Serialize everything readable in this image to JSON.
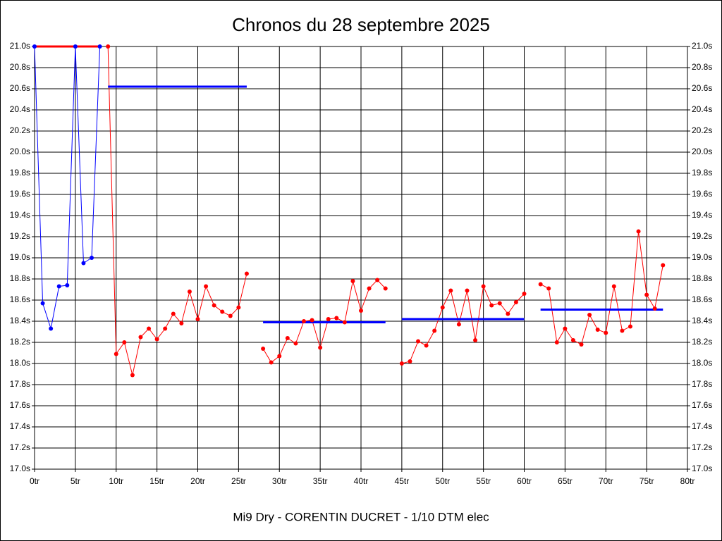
{
  "chart_data": {
    "type": "line",
    "title": "Chronos du 28 septembre 2025",
    "subtitle": "Mi9 Dry - CORENTIN DUCRET - 1/10 DTM elec",
    "grid": true,
    "xlim": [
      0,
      80
    ],
    "ylim": [
      17,
      21
    ],
    "xticks": [
      {
        "value": 0,
        "label": "0tr"
      },
      {
        "value": 5,
        "label": "5tr"
      },
      {
        "value": 10,
        "label": "10tr"
      },
      {
        "value": 15,
        "label": "15tr"
      },
      {
        "value": 20,
        "label": "20tr"
      },
      {
        "value": 25,
        "label": "25tr"
      },
      {
        "value": 30,
        "label": "30tr"
      },
      {
        "value": 35,
        "label": "35tr"
      },
      {
        "value": 40,
        "label": "40tr"
      },
      {
        "value": 45,
        "label": "45tr"
      },
      {
        "value": 50,
        "label": "50tr"
      },
      {
        "value": 55,
        "label": "55tr"
      },
      {
        "value": 60,
        "label": "60tr"
      },
      {
        "value": 65,
        "label": "65tr"
      },
      {
        "value": 70,
        "label": "70tr"
      },
      {
        "value": 75,
        "label": "75tr"
      },
      {
        "value": 80,
        "label": "80tr"
      }
    ],
    "yticks": [
      {
        "value": 17.0,
        "label": "17.0s"
      },
      {
        "value": 17.2,
        "label": "17.2s"
      },
      {
        "value": 17.4,
        "label": "17.4s"
      },
      {
        "value": 17.6,
        "label": "17.6s"
      },
      {
        "value": 17.8,
        "label": "17.8s"
      },
      {
        "value": 18.0,
        "label": "18.0s"
      },
      {
        "value": 18.2,
        "label": "18.2s"
      },
      {
        "value": 18.4,
        "label": "18.4s"
      },
      {
        "value": 18.6,
        "label": "18.6s"
      },
      {
        "value": 18.8,
        "label": "18.8s"
      },
      {
        "value": 19.0,
        "label": "19.0s"
      },
      {
        "value": 19.2,
        "label": "19.2s"
      },
      {
        "value": 19.4,
        "label": "19.4s"
      },
      {
        "value": 19.6,
        "label": "19.6s"
      },
      {
        "value": 19.8,
        "label": "19.8s"
      },
      {
        "value": 20.0,
        "label": "20.0s"
      },
      {
        "value": 20.2,
        "label": "20.2s"
      },
      {
        "value": 20.4,
        "label": "20.4s"
      },
      {
        "value": 20.6,
        "label": "20.6s"
      },
      {
        "value": 20.8,
        "label": "20.8s"
      },
      {
        "value": 21.0,
        "label": "21.0s"
      }
    ],
    "series": [
      {
        "color": "#0000ff",
        "x": [
          0,
          1,
          2,
          3,
          4,
          5,
          6,
          7,
          8
        ],
        "values": [
          21.0,
          18.57,
          18.33,
          18.73,
          18.74,
          21.0,
          18.95,
          19.0,
          21.0
        ]
      },
      {
        "color": "#ff0000",
        "x": [
          9,
          10,
          11,
          12,
          13,
          14,
          15,
          16,
          17,
          18,
          19,
          20,
          21,
          22,
          23,
          24,
          25,
          26,
          27,
          28,
          29,
          30,
          31,
          32,
          33,
          34,
          35,
          36,
          37,
          38,
          39,
          40,
          41,
          42,
          43,
          44,
          45,
          46,
          47,
          48,
          49,
          50,
          51,
          52,
          53,
          54,
          55,
          56,
          57,
          58,
          59,
          60,
          61,
          62,
          63,
          64,
          65,
          66,
          67,
          68,
          69,
          70,
          71,
          72,
          73,
          74,
          75,
          76,
          77
        ],
        "values": [
          21.0,
          18.09,
          18.2,
          17.89,
          18.25,
          18.33,
          18.23,
          18.33,
          18.47,
          18.38,
          18.68,
          18.42,
          18.73,
          18.55,
          18.49,
          18.45,
          18.53,
          18.85,
          null,
          18.14,
          18.01,
          18.07,
          18.24,
          18.19,
          18.4,
          18.41,
          18.15,
          18.42,
          18.43,
          18.39,
          18.78,
          18.5,
          18.71,
          18.79,
          18.71,
          null,
          18.0,
          18.02,
          18.21,
          18.17,
          18.31,
          18.53,
          18.69,
          18.37,
          18.69,
          18.22,
          18.73,
          18.55,
          18.57,
          18.47,
          18.58,
          18.66,
          null,
          18.75,
          18.71,
          18.2,
          18.33,
          18.22,
          18.18,
          18.46,
          18.32,
          18.29,
          18.73,
          18.31,
          18.35,
          19.25,
          18.65,
          18.52,
          18.93
        ]
      }
    ],
    "segments": [
      {
        "color": "#ff0000",
        "x": [
          0,
          8
        ],
        "value": 21.0
      },
      {
        "color": "#0000ff",
        "x": [
          9,
          26
        ],
        "value": 20.62
      },
      {
        "color": "#0000ff",
        "x": [
          28,
          43
        ],
        "value": 18.39
      },
      {
        "color": "#0000ff",
        "x": [
          45,
          60
        ],
        "value": 18.42
      },
      {
        "color": "#0000ff",
        "x": [
          62,
          77
        ],
        "value": 18.51
      }
    ]
  }
}
